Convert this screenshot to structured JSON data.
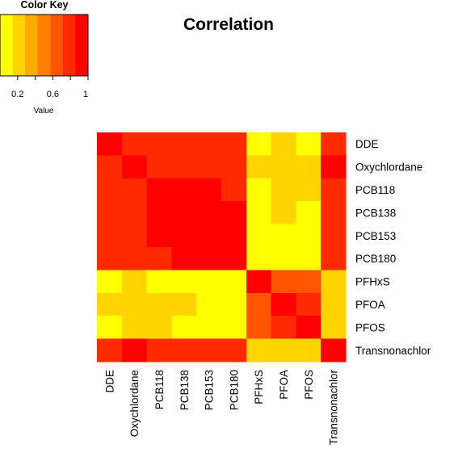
{
  "chart_data": {
    "type": "heatmap",
    "title": "Correlation",
    "row_labels": [
      "DDE",
      "Oxychlordane",
      "PCB118",
      "PCB138",
      "PCB153",
      "PCB180",
      "PFHxS",
      "PFOA",
      "PFOS",
      "Transnonachlor"
    ],
    "col_labels": [
      "DDE",
      "Oxychlordane",
      "PCB118",
      "PCB138",
      "PCB153",
      "PCB180",
      "PFHxS",
      "PFOA",
      "PFOS",
      "Transnonachlor"
    ],
    "values": [
      [
        1.0,
        0.75,
        0.8,
        0.83,
        0.83,
        0.76,
        0.05,
        0.18,
        0.1,
        0.78
      ],
      [
        0.75,
        1.0,
        0.76,
        0.81,
        0.8,
        0.77,
        0.18,
        0.25,
        0.25,
        0.95
      ],
      [
        0.8,
        0.76,
        1.0,
        0.92,
        0.88,
        0.79,
        0.12,
        0.22,
        0.15,
        0.77
      ],
      [
        0.83,
        0.81,
        0.92,
        1.0,
        0.98,
        0.94,
        0.06,
        0.16,
        0.14,
        0.84
      ],
      [
        0.83,
        0.8,
        0.88,
        0.98,
        1.0,
        0.97,
        0.06,
        0.1,
        0.09,
        0.83
      ],
      [
        0.76,
        0.77,
        0.79,
        0.94,
        0.97,
        1.0,
        0.06,
        0.07,
        0.08,
        0.78
      ],
      [
        0.05,
        0.18,
        0.12,
        0.06,
        0.06,
        0.06,
        1.0,
        0.65,
        0.65,
        0.15
      ],
      [
        0.18,
        0.25,
        0.22,
        0.16,
        0.1,
        0.07,
        0.65,
        1.0,
        0.72,
        0.19
      ],
      [
        0.1,
        0.25,
        0.15,
        0.14,
        0.09,
        0.08,
        0.65,
        0.72,
        1.0,
        0.18
      ],
      [
        0.78,
        0.95,
        0.77,
        0.84,
        0.83,
        0.78,
        0.15,
        0.19,
        0.18,
        1.0
      ]
    ],
    "color_scale": [
      "#ffff00",
      "#ffd400",
      "#ffaa00",
      "#ff7f00",
      "#ff5500",
      "#ff2a00",
      "#ff0000"
    ],
    "value_range": [
      0,
      1
    ],
    "color_key": {
      "title": "Color Key",
      "xlabel": "Value",
      "ticks": [
        {
          "value": 0.2,
          "label": "0.2"
        },
        {
          "value": 0.6,
          "label": "0.6"
        },
        {
          "value": 1.0,
          "label": "1"
        }
      ],
      "minor_ticks": [
        0.4,
        0.8
      ]
    }
  }
}
